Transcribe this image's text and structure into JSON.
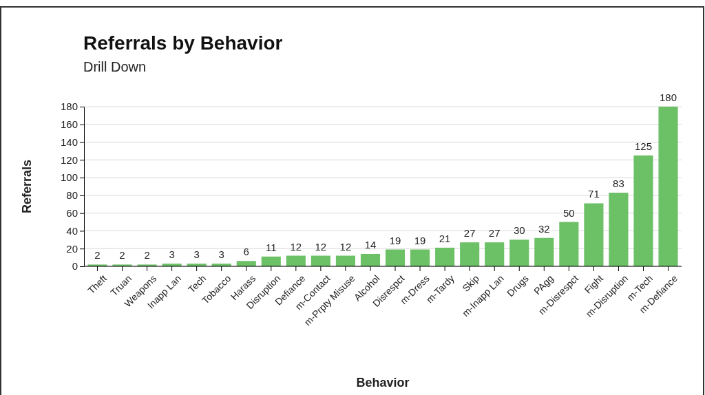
{
  "chart_data": {
    "type": "bar",
    "title": "Referrals by Behavior",
    "subtitle": "Drill Down",
    "xlabel": "Behavior",
    "ylabel": "Referrals",
    "categories": [
      "Theft",
      "Truan",
      "Weapons",
      "Inapp Lan",
      "Tech",
      "Tobacco",
      "Harass",
      "Disruption",
      "Defiance",
      "m-Contact",
      "m-Prpty Misuse",
      "Alcohol",
      "Disrespct",
      "m-Dress",
      "m-Tardy",
      "Skip",
      "m-Inapp Lan",
      "Drugs",
      "PAgg",
      "m-Disrespct",
      "Fight",
      "m-Disruption",
      "m-Tech",
      "m-Defiance"
    ],
    "values": [
      2,
      2,
      2,
      3,
      3,
      3,
      6,
      11,
      12,
      12,
      12,
      14,
      19,
      19,
      21,
      27,
      27,
      30,
      32,
      50,
      71,
      83,
      125,
      180
    ],
    "color": "#6cc066",
    "ylim": [
      0,
      180
    ],
    "yticks": [
      0,
      20,
      40,
      60,
      80,
      100,
      120,
      140,
      160,
      180
    ],
    "grid": "y",
    "data_labels": true
  }
}
